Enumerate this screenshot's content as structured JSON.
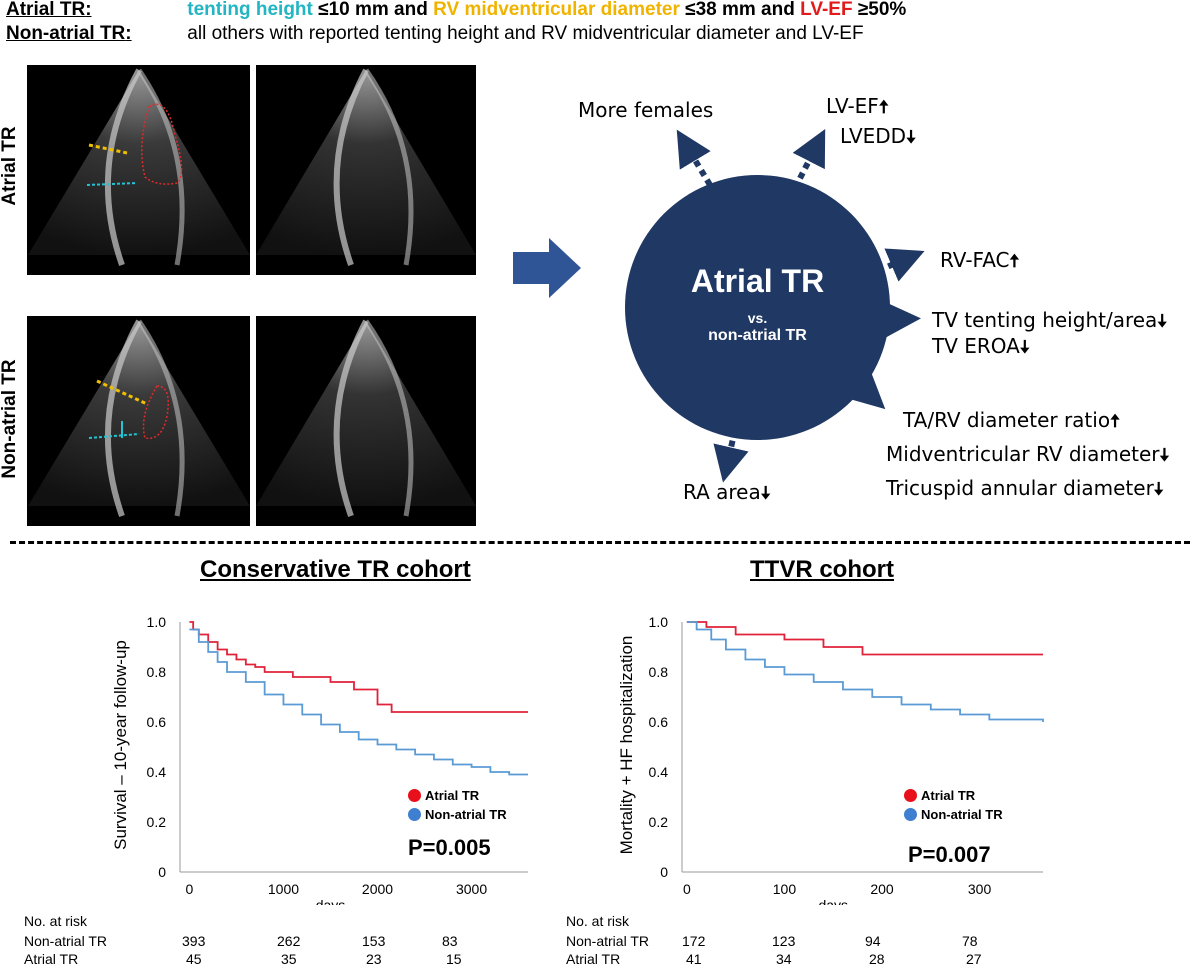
{
  "header": {
    "line1_label": "Atrial TR",
    "line1_colon": ":",
    "line1_parts": {
      "tenting": "tenting height",
      "tenting_val": " ≤10 mm and ",
      "rv": "RV midventricular diameter",
      "rv_val": " ≤38 mm and ",
      "lvef": "LV-EF",
      "lvef_val": " ≥50%"
    },
    "line2_label": "Non-atrial TR",
    "line2_colon": ":",
    "line2_text": "all others with reported tenting height and RV midventricular  diameter and LV-EF"
  },
  "echo": {
    "top_label": "Atrial TR",
    "bottom_label": "Non-atrial TR"
  },
  "circle": {
    "title": "Atrial TR",
    "vs": "vs.",
    "subtitle": "non-atrial TR",
    "color": "#1f3864"
  },
  "features": {
    "more_females": "More females",
    "lvef": "LV-EF",
    "lvedd": "LVEDD",
    "rvfac": "RV-FAC",
    "tv_tenting": "TV tenting height/area",
    "tv_eroa": "TV EROA",
    "ta_rv": "TA/RV diameter ratio",
    "mid_rv": "Midventricular RV diameter",
    "tric_annular": "Tricuspid annular diameter",
    "ra_area": "RA area",
    "up": "🠅",
    "down": "🠇"
  },
  "chart_data": [
    {
      "type": "line",
      "title": "Conservative TR cohort",
      "xlabel": "days",
      "ylabel": "Survival – 10-year follow-up",
      "xlim": [
        -100,
        3600
      ],
      "ylim": [
        0,
        1.0
      ],
      "xticks": [
        "0",
        "1000",
        "2000",
        "3000"
      ],
      "xtick_values": [
        0,
        1000,
        2000,
        3000
      ],
      "yticks": [
        "0",
        "0.2",
        "0.4",
        "0.6",
        "0.8",
        "1.0"
      ],
      "ytick_values": [
        0,
        0.2,
        0.4,
        0.6,
        0.8,
        1.0
      ],
      "series": [
        {
          "name": "Atrial TR",
          "color": "#e0223a",
          "points": [
            [
              0,
              1.0
            ],
            [
              40,
              0.97
            ],
            [
              100,
              0.95
            ],
            [
              200,
              0.92
            ],
            [
              300,
              0.89
            ],
            [
              400,
              0.87
            ],
            [
              500,
              0.85
            ],
            [
              600,
              0.83
            ],
            [
              700,
              0.82
            ],
            [
              800,
              0.8
            ],
            [
              1000,
              0.8
            ],
            [
              1100,
              0.78
            ],
            [
              1400,
              0.78
            ],
            [
              1500,
              0.76
            ],
            [
              1700,
              0.76
            ],
            [
              1750,
              0.73
            ],
            [
              1950,
              0.73
            ],
            [
              2000,
              0.67
            ],
            [
              2100,
              0.67
            ],
            [
              2150,
              0.64
            ],
            [
              3600,
              0.64
            ]
          ]
        },
        {
          "name": "Non-atrial TR",
          "color": "#5b9bd5",
          "points": [
            [
              0,
              0.97
            ],
            [
              100,
              0.92
            ],
            [
              200,
              0.88
            ],
            [
              300,
              0.84
            ],
            [
              400,
              0.8
            ],
            [
              600,
              0.76
            ],
            [
              800,
              0.71
            ],
            [
              1000,
              0.67
            ],
            [
              1200,
              0.63
            ],
            [
              1400,
              0.59
            ],
            [
              1600,
              0.56
            ],
            [
              1800,
              0.53
            ],
            [
              2000,
              0.51
            ],
            [
              2200,
              0.49
            ],
            [
              2400,
              0.47
            ],
            [
              2600,
              0.45
            ],
            [
              2800,
              0.43
            ],
            [
              3000,
              0.42
            ],
            [
              3200,
              0.4
            ],
            [
              3400,
              0.39
            ],
            [
              3600,
              0.39
            ]
          ]
        }
      ],
      "p_value": "P=0.005",
      "legend_placement": "bottom-right",
      "risk_table": {
        "header": "No. at risk",
        "rows": [
          {
            "label": "Non-atrial TR",
            "values": [
              "393",
              "262",
              "153",
              "83"
            ]
          },
          {
            "label": "Atrial TR",
            "values": [
              "45",
              "35",
              "23",
              "15"
            ]
          }
        ]
      }
    },
    {
      "type": "line",
      "title": "TTVR cohort",
      "xlabel": "days",
      "ylabel": "Mortality + HF hospitalization",
      "xlim": [
        -5,
        365
      ],
      "ylim": [
        0,
        1.0
      ],
      "xticks": [
        "0",
        "100",
        "200",
        "300"
      ],
      "xtick_values": [
        0,
        100,
        200,
        300
      ],
      "yticks": [
        "0",
        "0.2",
        "0.4",
        "0.6",
        "0.8",
        "1.0"
      ],
      "ytick_values": [
        0,
        0.2,
        0.4,
        0.6,
        0.8,
        1.0
      ],
      "series": [
        {
          "name": "Atrial TR",
          "color": "#e0223a",
          "points": [
            [
              0,
              1.0
            ],
            [
              20,
              1.0
            ],
            [
              20,
              0.98
            ],
            [
              50,
              0.98
            ],
            [
              50,
              0.95
            ],
            [
              100,
              0.95
            ],
            [
              100,
              0.93
            ],
            [
              140,
              0.93
            ],
            [
              140,
              0.9
            ],
            [
              180,
              0.9
            ],
            [
              180,
              0.87
            ],
            [
              365,
              0.87
            ]
          ]
        },
        {
          "name": "Non-atrial TR",
          "color": "#5b9bd5",
          "points": [
            [
              0,
              1.0
            ],
            [
              10,
              0.97
            ],
            [
              25,
              0.93
            ],
            [
              40,
              0.89
            ],
            [
              60,
              0.85
            ],
            [
              80,
              0.82
            ],
            [
              100,
              0.79
            ],
            [
              130,
              0.76
            ],
            [
              160,
              0.73
            ],
            [
              190,
              0.7
            ],
            [
              220,
              0.67
            ],
            [
              250,
              0.65
            ],
            [
              280,
              0.63
            ],
            [
              310,
              0.61
            ],
            [
              340,
              0.61
            ],
            [
              365,
              0.6
            ]
          ]
        }
      ],
      "p_value": "P=0.007",
      "legend_placement": "bottom-right",
      "risk_table": {
        "header": "No. at risk",
        "rows": [
          {
            "label": "Non-atrial TR",
            "values": [
              "172",
              "123",
              "94",
              "78"
            ]
          },
          {
            "label": "Atrial TR",
            "values": [
              "41",
              "34",
              "28",
              "27"
            ]
          }
        ]
      }
    }
  ]
}
